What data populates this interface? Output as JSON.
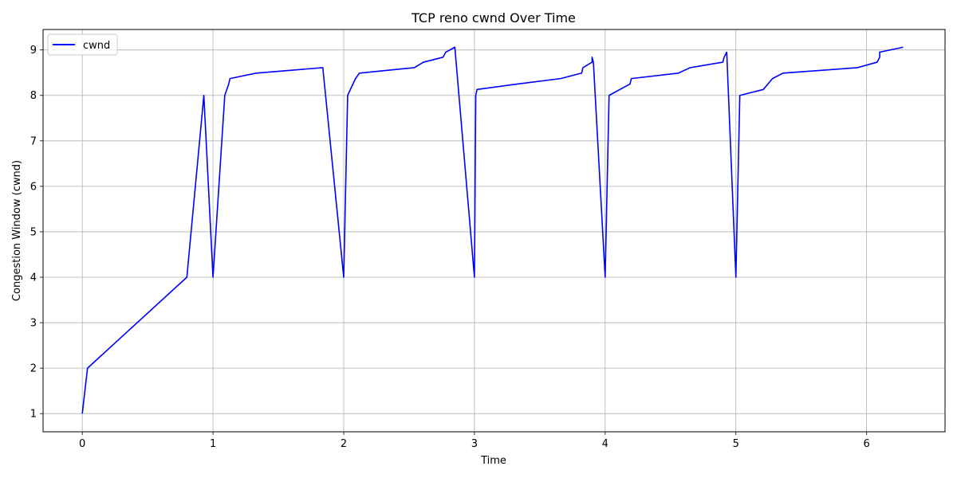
{
  "chart_data": {
    "type": "line",
    "title": "TCP reno cwnd Over Time",
    "xlabel": "Time",
    "ylabel": "Congestion Window (cwnd)",
    "xlim": [
      -0.3,
      6.6
    ],
    "ylim": [
      0.6,
      9.45
    ],
    "xticks": [
      0,
      1,
      2,
      3,
      4,
      5,
      6
    ],
    "yticks": [
      1,
      2,
      3,
      4,
      5,
      6,
      7,
      8,
      9
    ],
    "grid": true,
    "legend": {
      "position": "top-left",
      "entries": [
        "cwnd"
      ]
    },
    "series": [
      {
        "name": "cwnd",
        "color": "#0000ff",
        "points": [
          [
            0.0,
            1.0
          ],
          [
            0.04,
            2.0
          ],
          [
            0.8,
            4.0
          ],
          [
            0.93,
            8.0
          ],
          [
            1.0,
            4.0
          ],
          [
            1.09,
            8.0
          ],
          [
            1.12,
            8.25
          ],
          [
            1.13,
            8.37
          ],
          [
            1.33,
            8.49
          ],
          [
            1.84,
            8.61
          ],
          [
            2.0,
            4.0
          ],
          [
            2.03,
            8.0
          ],
          [
            2.09,
            8.37
          ],
          [
            2.12,
            8.49
          ],
          [
            2.54,
            8.61
          ],
          [
            2.61,
            8.73
          ],
          [
            2.76,
            8.84
          ],
          [
            2.78,
            8.95
          ],
          [
            2.85,
            9.06
          ],
          [
            3.0,
            4.0
          ],
          [
            3.01,
            8.0
          ],
          [
            3.02,
            8.13
          ],
          [
            3.33,
            8.25
          ],
          [
            3.66,
            8.37
          ],
          [
            3.82,
            8.49
          ],
          [
            3.83,
            8.61
          ],
          [
            3.9,
            8.73
          ],
          [
            3.9,
            8.84
          ],
          [
            3.91,
            8.73
          ],
          [
            4.0,
            4.0
          ],
          [
            4.03,
            8.0
          ],
          [
            4.19,
            8.25
          ],
          [
            4.2,
            8.37
          ],
          [
            4.56,
            8.49
          ],
          [
            4.65,
            8.61
          ],
          [
            4.9,
            8.73
          ],
          [
            4.91,
            8.84
          ],
          [
            4.93,
            8.95
          ],
          [
            5.0,
            4.0
          ],
          [
            5.03,
            8.0
          ],
          [
            5.21,
            8.13
          ],
          [
            5.28,
            8.37
          ],
          [
            5.36,
            8.49
          ],
          [
            5.93,
            8.61
          ],
          [
            6.08,
            8.73
          ],
          [
            6.1,
            8.84
          ],
          [
            6.1,
            8.95
          ],
          [
            6.28,
            9.06
          ]
        ]
      }
    ]
  }
}
